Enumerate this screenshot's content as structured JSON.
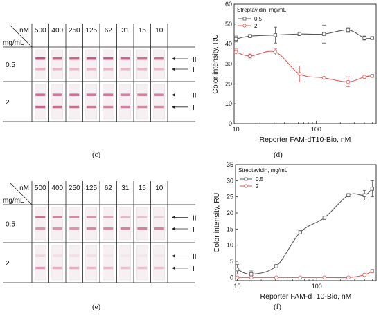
{
  "captions": [
    "(c)",
    "(d)",
    "(e)",
    "(f)"
  ],
  "strip_tables": [
    {
      "id": "c",
      "concentration_header": "nM",
      "streptavidin_header": "mg/mL",
      "concentrations": [
        "500",
        "400",
        "250",
        "125",
        "62",
        "31",
        "15",
        "10"
      ],
      "rows": [
        {
          "label": "0.5",
          "line_labels": [
            "II",
            "I"
          ],
          "band_intensity_upper": [
            0.85,
            0.75,
            0.75,
            0.8,
            0.8,
            0.75,
            0.7,
            0.7
          ],
          "band_intensity_lower": [
            0.35,
            0.3,
            0.3,
            0.3,
            0.3,
            0.3,
            0.3,
            0.3
          ]
        },
        {
          "label": "2",
          "line_labels": [
            "II",
            "I"
          ],
          "band_intensity_upper": [
            0.7,
            0.65,
            0.7,
            0.65,
            0.65,
            0.6,
            0.6,
            0.6
          ],
          "band_intensity_lower": [
            0.75,
            0.7,
            0.7,
            0.65,
            0.6,
            0.6,
            0.55,
            0.55
          ]
        }
      ]
    },
    {
      "id": "e",
      "concentration_header": "nM",
      "streptavidin_header": "mg/mL",
      "concentrations": [
        "500",
        "400",
        "250",
        "125",
        "62",
        "31",
        "15",
        "10"
      ],
      "rows": [
        {
          "label": "0.5",
          "line_labels": [
            "II",
            "I"
          ],
          "band_intensity_upper": [
            0.7,
            0.6,
            0.55,
            0.5,
            0.4,
            0.3,
            0.25,
            0.2
          ],
          "band_intensity_lower": [
            0.5,
            0.5,
            0.5,
            0.55,
            0.55,
            0.6,
            0.6,
            0.6
          ]
        },
        {
          "label": "2",
          "line_labels": [
            "II",
            "I"
          ],
          "band_intensity_upper": [
            0.15,
            0.1,
            0.1,
            0.1,
            0.05,
            0.05,
            0.05,
            0.05
          ],
          "band_intensity_lower": [
            0.45,
            0.35,
            0.35,
            0.3,
            0.3,
            0.25,
            0.25,
            0.25
          ]
        }
      ]
    }
  ],
  "chart_data": [
    {
      "id": "d",
      "type": "line",
      "xscale": "log",
      "xlim": [
        9.5,
        560
      ],
      "ylim": [
        0,
        60
      ],
      "xticks": [
        10,
        100
      ],
      "yticks": [
        0,
        10,
        20,
        30,
        40,
        50,
        60
      ],
      "xlabel": "Reporter FAM-dT10-Bio, nM",
      "ylabel": "Color intensity, RU",
      "legend_title": "Streptavidin, mg/mL",
      "legend_position": "top-left",
      "series": [
        {
          "name": "0.5",
          "color": "#555555",
          "x": [
            10,
            15,
            31,
            62,
            125,
            250,
            400,
            500
          ],
          "y": [
            42.5,
            44,
            44.5,
            45,
            45,
            47,
            43,
            43
          ],
          "err": [
            1.5,
            0.8,
            4,
            0.8,
            4.5,
            1.2,
            1,
            0.5
          ]
        },
        {
          "name": "2",
          "color": "#e05a5a",
          "x": [
            10,
            15,
            31,
            62,
            125,
            250,
            400,
            500
          ],
          "y": [
            36,
            34,
            36,
            25,
            23,
            21,
            23.5,
            24
          ],
          "err": [
            1.5,
            1,
            1.5,
            4,
            0.5,
            2.5,
            1,
            0.8
          ]
        }
      ]
    },
    {
      "id": "f",
      "type": "line",
      "xscale": "log",
      "xlim": [
        9.5,
        560
      ],
      "ylim": [
        -1,
        35
      ],
      "xticks": [
        10,
        100
      ],
      "yticks": [
        0,
        5,
        10,
        15,
        20,
        25,
        30,
        35
      ],
      "xlabel": "Reporter FAM-dT10-Bio, nM",
      "ylabel": "Color intensity, RU",
      "legend_title": "Streptavidin, mg/mL",
      "legend_position": "top-left",
      "series": [
        {
          "name": "0.5",
          "color": "#555555",
          "x": [
            10,
            15,
            31,
            62,
            125,
            250,
            400,
            500
          ],
          "y": [
            2.5,
            1,
            3.5,
            14,
            18.5,
            25.5,
            25.5,
            27.5
          ],
          "err": [
            1.5,
            1,
            0.5,
            0.5,
            0.5,
            0.5,
            1.5,
            2.5
          ]
        },
        {
          "name": "2",
          "color": "#e05a5a",
          "x": [
            10,
            15,
            31,
            62,
            125,
            250,
            400,
            500
          ],
          "y": [
            0,
            0,
            0,
            0,
            0,
            0,
            0.8,
            2
          ],
          "err": [
            0.2,
            0.2,
            0.2,
            0.2,
            0.2,
            0.2,
            0.4,
            0.5
          ]
        }
      ]
    }
  ]
}
